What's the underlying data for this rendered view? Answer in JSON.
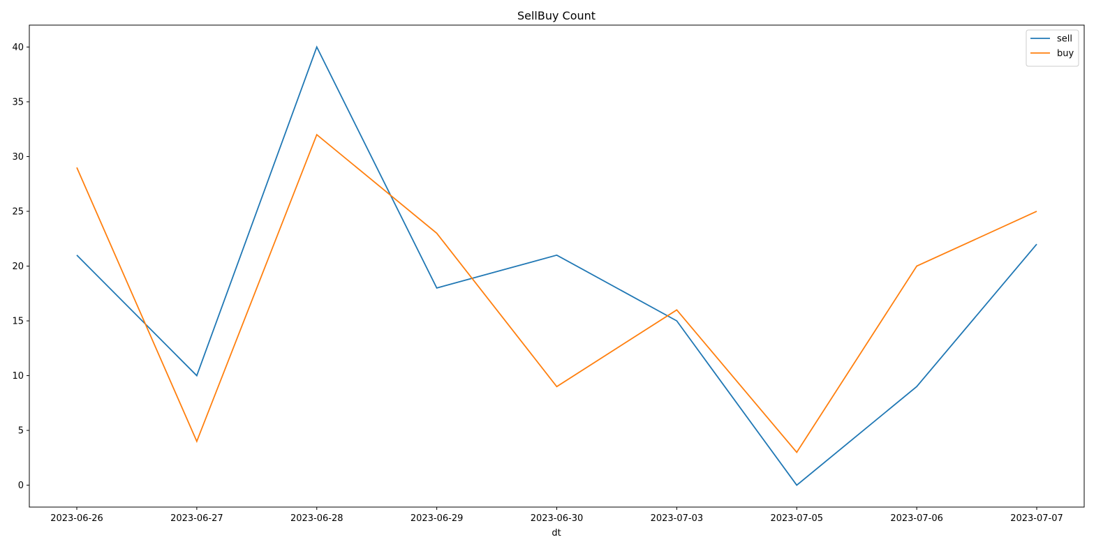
{
  "chart_data": {
    "type": "line",
    "title": "SellBuy Count",
    "xlabel": "dt",
    "ylabel": "",
    "categories": [
      "2023-06-26",
      "2023-06-27",
      "2023-06-28",
      "2023-06-29",
      "2023-06-30",
      "2023-07-03",
      "2023-07-05",
      "2023-07-06",
      "2023-07-07"
    ],
    "series": [
      {
        "name": "sell",
        "color": "#1f77b4",
        "values": [
          21,
          10,
          40,
          18,
          21,
          15,
          0,
          9,
          22
        ]
      },
      {
        "name": "buy",
        "color": "#ff7f0e",
        "values": [
          29,
          4,
          32,
          23,
          9,
          16,
          3,
          20,
          25
        ]
      }
    ],
    "ylim": [
      -2,
      42
    ],
    "yticks": [
      0,
      5,
      10,
      15,
      20,
      25,
      30,
      35,
      40
    ],
    "grid": false,
    "legend": "top-right"
  }
}
